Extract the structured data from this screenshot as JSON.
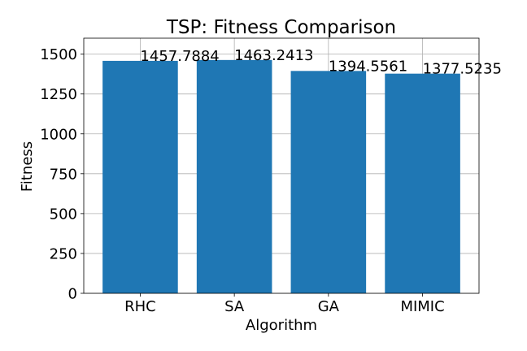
{
  "chart_data": {
    "type": "bar",
    "title": "TSP: Fitness Comparison",
    "xlabel": "Algorithm",
    "ylabel": "Fitness",
    "categories": [
      "RHC",
      "SA",
      "GA",
      "MIMIC"
    ],
    "values": [
      1457.7884,
      1463.2413,
      1394.5561,
      1377.5235
    ],
    "data_labels": [
      "1457.7884",
      "1463.2413",
      "1394.5561",
      "1377.5235"
    ],
    "yticks": [
      0,
      250,
      500,
      750,
      1000,
      1250,
      1500
    ],
    "ytick_labels": [
      "0",
      "250",
      "500",
      "750",
      "1000",
      "1250",
      "1500"
    ],
    "ylim": [
      0,
      1600
    ],
    "grid": true,
    "bar_color": "#1f77b4"
  }
}
